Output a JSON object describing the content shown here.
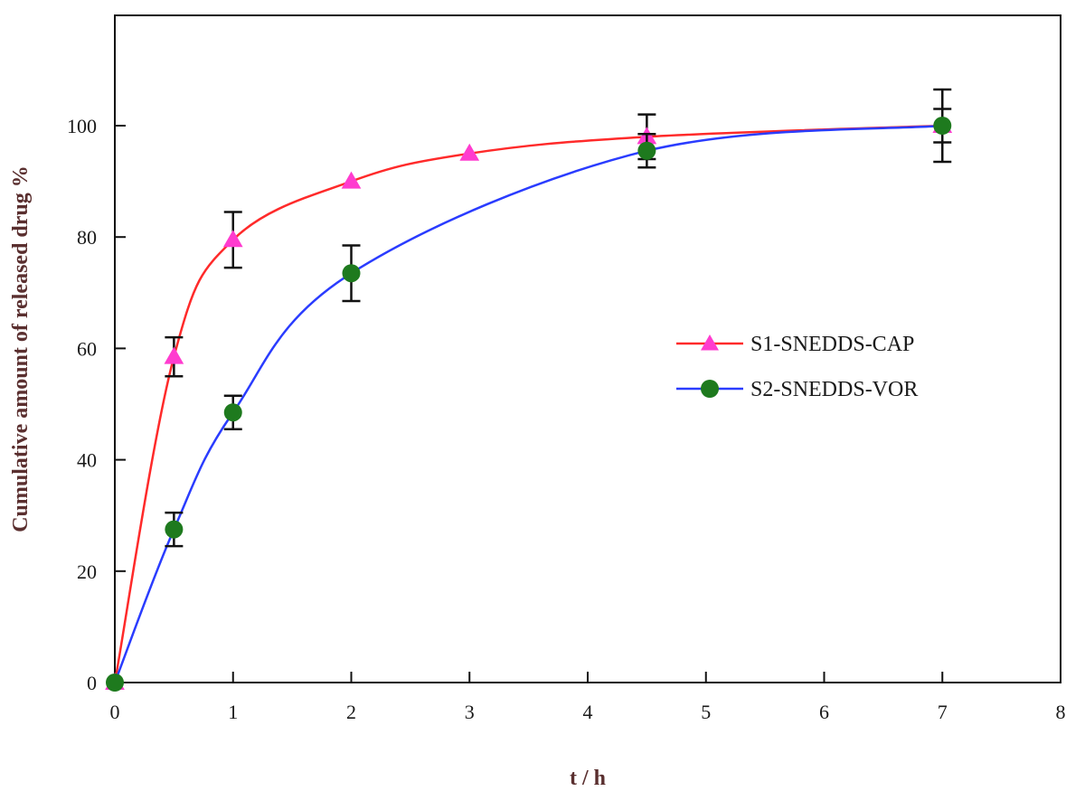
{
  "chart_data": {
    "type": "line",
    "xlabel": "t / h",
    "ylabel": "Cumulative amount of released drug %",
    "xlim": [
      0,
      8
    ],
    "ylim": [
      0,
      120
    ],
    "xticks": [
      "0",
      "1",
      "2",
      "3",
      "4",
      "5",
      "6",
      "7",
      "8"
    ],
    "yticks": [
      "0",
      "20",
      "40",
      "60",
      "80",
      "100"
    ],
    "grid": false,
    "legend_position": "right",
    "series": [
      {
        "name": "S1-SNEDDS-CAP",
        "line_color": "#ff2a2a",
        "marker_color": "#ff3ccf",
        "marker": "triangle",
        "x": [
          0,
          0.5,
          1,
          2,
          3,
          4.5,
          7
        ],
        "y": [
          0,
          58.5,
          79.5,
          90,
          95,
          98,
          100
        ],
        "error": [
          0,
          3.5,
          5,
          0,
          0,
          4,
          3
        ]
      },
      {
        "name": "S2-SNEDDS-VOR",
        "line_color": "#2a3cff",
        "marker_color": "#1e7a1e",
        "marker": "circle",
        "x": [
          0,
          0.5,
          1,
          2,
          4.5,
          7
        ],
        "y": [
          0,
          27.5,
          48.5,
          73.5,
          95.5,
          100
        ],
        "error": [
          0,
          3,
          3,
          5,
          3,
          6.5
        ]
      }
    ]
  }
}
